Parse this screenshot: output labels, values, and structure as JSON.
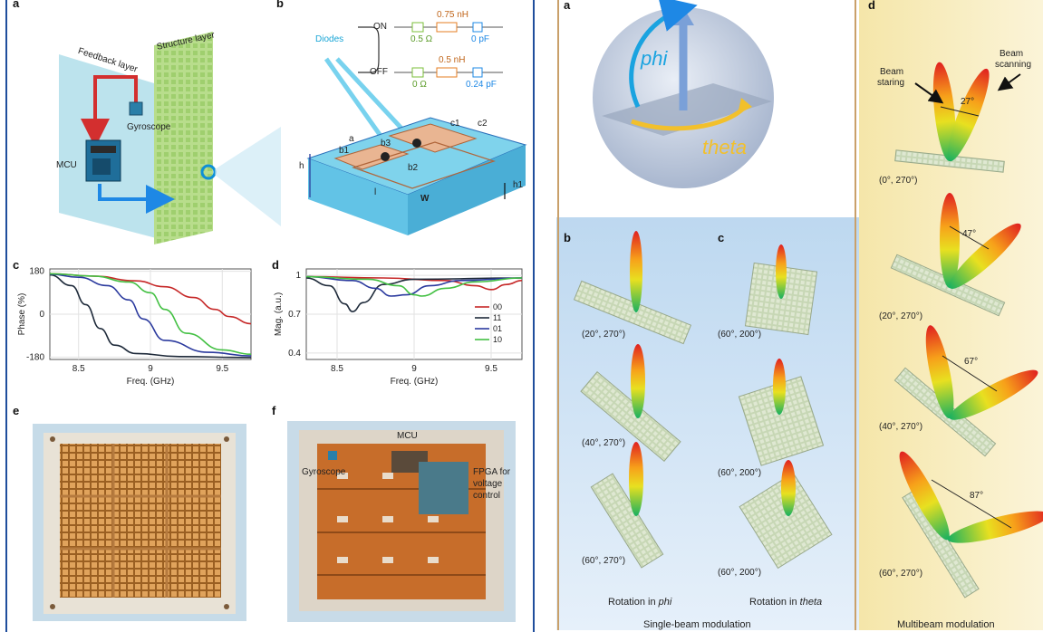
{
  "left_figure": {
    "panel_labels": {
      "a": "a",
      "b": "b",
      "c": "c",
      "d": "d",
      "e": "e",
      "f": "f"
    },
    "schematic": {
      "feedback_layer": "Feedback layer",
      "structure_layer": "Structure layer",
      "gyroscope": "Gyroscope",
      "mcu": "MCU"
    },
    "unit_cell": {
      "diodes": "Diodes",
      "on": "ON",
      "off": "OFF",
      "on_inductance": "0.75 nH",
      "on_resistance": "0.5 Ω",
      "on_capacitance": "0 pF",
      "off_inductance": "0.5 nH",
      "off_resistance": "0 Ω",
      "off_capacitance": "0.24 pF",
      "dims": {
        "a": "a",
        "b1": "b1",
        "b2": "b2",
        "b3": "b3",
        "c1": "c1",
        "c2": "c2",
        "h": "h",
        "h1": "h1",
        "w": "W",
        "l": "l"
      }
    },
    "photo_f": {
      "mcu": "MCU",
      "gyroscope": "Gyroscope",
      "fpga": [
        "FPGA for",
        "voltage",
        "control"
      ]
    }
  },
  "chart_data": [
    {
      "type": "line",
      "panel": "c",
      "xlabel": "Freq. (GHz)",
      "ylabel": "Phase (%)",
      "xlim": [
        8.3,
        9.7
      ],
      "ylim": [
        -190,
        190
      ],
      "xticks": [
        "8.5",
        "9",
        "9.5"
      ],
      "yticks": [
        "180",
        "0",
        "-180"
      ],
      "grid": true,
      "series": [
        {
          "color": "#c62828",
          "x": [
            8.3,
            8.6,
            8.9,
            9.1,
            9.3,
            9.45,
            9.55,
            9.7
          ],
          "y": [
            170,
            160,
            140,
            115,
            70,
            20,
            -10,
            -40
          ]
        },
        {
          "color": "#1e2a3a",
          "x": [
            8.3,
            8.45,
            8.55,
            8.65,
            8.75,
            8.9,
            9.2,
            9.7
          ],
          "y": [
            165,
            120,
            40,
            -60,
            -130,
            -165,
            -178,
            -182
          ]
        },
        {
          "color": "#2b3a9e",
          "x": [
            8.3,
            8.5,
            8.7,
            8.85,
            8.95,
            9.1,
            9.4,
            9.7
          ],
          "y": [
            168,
            155,
            120,
            60,
            -20,
            -110,
            -160,
            -175
          ]
        },
        {
          "color": "#43c043",
          "x": [
            8.3,
            8.6,
            8.85,
            9.0,
            9.1,
            9.25,
            9.5,
            9.7
          ],
          "y": [
            170,
            160,
            135,
            90,
            20,
            -80,
            -150,
            -168
          ]
        }
      ]
    },
    {
      "type": "line",
      "panel": "d",
      "xlabel": "Freq. (GHz)",
      "ylabel": "Mag. (a.u.)",
      "xlim": [
        8.3,
        9.7
      ],
      "ylim": [
        0.35,
        1.05
      ],
      "xticks": [
        "8.5",
        "9",
        "9.5"
      ],
      "yticks": [
        "1",
        "0.7",
        "0.4"
      ],
      "grid": true,
      "legend_position": "right",
      "series": [
        {
          "name": "00",
          "color": "#c62828",
          "x": [
            8.3,
            8.8,
            9.2,
            9.4,
            9.5,
            9.6,
            9.7
          ],
          "y": [
            0.99,
            0.98,
            0.96,
            0.92,
            0.89,
            0.93,
            0.96
          ]
        },
        {
          "name": "11",
          "color": "#1e2a3a",
          "x": [
            8.3,
            8.45,
            8.55,
            8.6,
            8.67,
            8.8,
            9.0,
            9.7
          ],
          "y": [
            0.98,
            0.92,
            0.78,
            0.72,
            0.79,
            0.93,
            0.97,
            0.98
          ]
        },
        {
          "name": "01",
          "color": "#2b3a9e",
          "x": [
            8.3,
            8.6,
            8.75,
            8.85,
            8.95,
            9.1,
            9.3,
            9.7
          ],
          "y": [
            0.99,
            0.96,
            0.9,
            0.84,
            0.85,
            0.92,
            0.96,
            0.98
          ]
        },
        {
          "name": "10",
          "color": "#43c043",
          "x": [
            8.3,
            8.7,
            8.9,
            9.0,
            9.05,
            9.2,
            9.4,
            9.7
          ],
          "y": [
            0.99,
            0.97,
            0.92,
            0.85,
            0.84,
            0.9,
            0.95,
            0.98
          ]
        }
      ]
    }
  ],
  "middle_figure": {
    "panel_labels": {
      "a": "a",
      "b": "b",
      "c": "c"
    },
    "phi": "phi",
    "theta": "theta",
    "col_b": {
      "labels": [
        "(20°, 270°)",
        "(40°, 270°)",
        "(60°, 270°)"
      ],
      "caption_prefix": "Rotation in ",
      "caption_italic": "phi"
    },
    "col_c": {
      "labels": [
        "(60°, 200°)",
        "(60°, 200°)",
        "(60°, 200°)"
      ],
      "caption_prefix": "Rotation in ",
      "caption_italic": "theta"
    },
    "bottom_caption": "Single-beam modulation"
  },
  "right_figure": {
    "panel_label": "d",
    "beam_staring": [
      "Beam",
      "staring"
    ],
    "beam_scanning": [
      "Beam",
      "scanning"
    ],
    "angles": [
      "27°",
      "47°",
      "67°",
      "87°"
    ],
    "labels": [
      "(0°, 270°)",
      "(20°, 270°)",
      "(40°, 270°)",
      "(60°, 270°)"
    ],
    "bottom_caption": "Multibeam modulation"
  },
  "colors": {
    "left_border": "#1f4e9c",
    "middle_bg": "#cfe3f5",
    "right_bg": "#f7edc0",
    "separator": "#c9a06a",
    "phi_color": "#1aa3e0",
    "theta_color": "#f2c02c"
  }
}
